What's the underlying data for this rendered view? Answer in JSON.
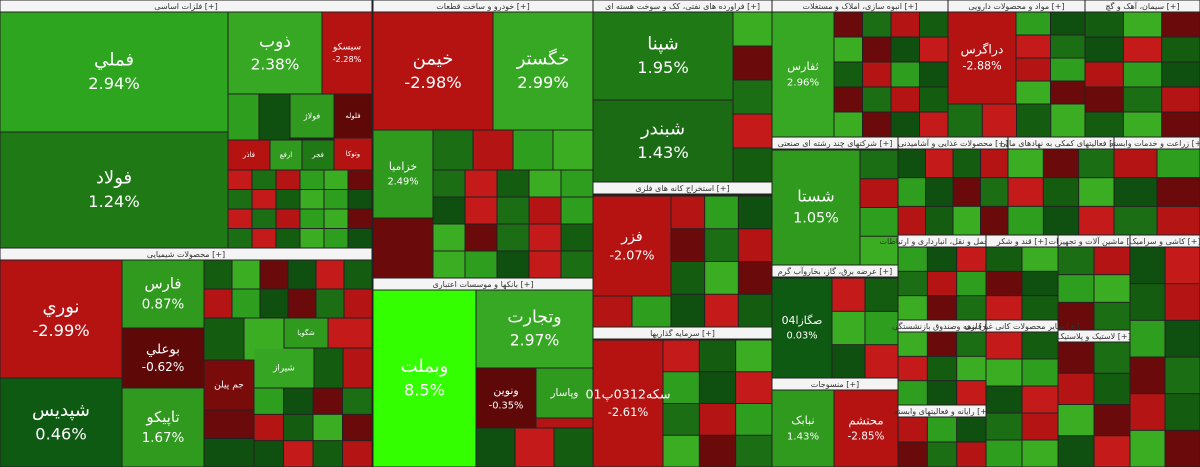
{
  "sectors": [
    {
      "title": "فلزات اساسی [+]",
      "tiles": [
        {
          "name": "فملي",
          "change": "2.94%",
          "color": "#2ea51f"
        },
        {
          "name": "فولاد",
          "change": "1.24%",
          "color": "#1f7a16"
        },
        {
          "name": "ذوب",
          "change": "2.38%",
          "color": "#37a823"
        },
        {
          "name": "سیسکو",
          "change": "-2.28%",
          "color": "#b51212"
        },
        {
          "name": "فولاژ",
          "color": "#2f9a1e"
        },
        {
          "name": "فلوله",
          "color": "#5e0808"
        },
        {
          "name": "فاذر",
          "color": "#b51212"
        },
        {
          "name": "ارفع",
          "color": "#2f9a1e"
        },
        {
          "name": "فجر",
          "color": "#1f7a16"
        },
        {
          "name": "وتوکا",
          "color": "#b51212"
        }
      ]
    },
    {
      "title": "محصولات شیمیایی [+]",
      "tiles": [
        {
          "name": "نوري",
          "change": "-2.99%",
          "color": "#b51212"
        },
        {
          "name": "شپديس",
          "change": "0.46%",
          "color": "#0f5a12"
        },
        {
          "name": "فارس",
          "change": "0.87%",
          "color": "#2f9a1e"
        },
        {
          "name": "بوعلي",
          "change": "-0.62%",
          "color": "#5e0808"
        },
        {
          "name": "تاپيکو",
          "change": "1.67%",
          "color": "#2f9a1e"
        },
        {
          "name": "جم پيلن",
          "color": "#7a0b0b"
        },
        {
          "name": "شگويا",
          "color": "#2f9a1e"
        },
        {
          "name": "شيراز",
          "color": "#36a524"
        }
      ]
    },
    {
      "title": "خودرو و ساخت قطعات [+]",
      "tiles": [
        {
          "name": "خيمن",
          "change": "-2.98%",
          "color": "#b51212"
        },
        {
          "name": "خگستر",
          "change": "2.99%",
          "color": "#37a823"
        },
        {
          "name": "خزاميا",
          "change": "2.49%",
          "color": "#2f9a1e"
        }
      ]
    },
    {
      "title": "بانکها و موسسات اعتباری [+]",
      "tiles": [
        {
          "name": "وبملت",
          "change": "8.5%",
          "color": "#33ff00"
        },
        {
          "name": "وتجارت",
          "change": "2.97%",
          "color": "#37a823"
        },
        {
          "name": "ونوين",
          "change": "-0.35%",
          "color": "#5e0808"
        },
        {
          "name": "وپاسار",
          "color": "#2f9a1e"
        }
      ]
    },
    {
      "title": "فراورده های نفتی، کک و سوخت هسته ای [+]",
      "tiles": [
        {
          "name": "شپنا",
          "change": "1.95%",
          "color": "#1f7a16"
        },
        {
          "name": "شبندر",
          "change": "1.43%",
          "color": "#1a6b14"
        }
      ]
    },
    {
      "title": "استخراج کانه های فلزی [+]",
      "tiles": [
        {
          "name": "فزر",
          "change": "-2.07%",
          "color": "#b51212"
        }
      ]
    },
    {
      "title": "سرمایه گذاریها [+]",
      "tiles": [
        {
          "name": "سکه0312پ01",
          "change": "-2.61%",
          "color": "#b51212"
        }
      ]
    },
    {
      "title": "انبوه سازی، املاک و مستغلات [+]",
      "tiles": [
        {
          "name": "ثفارس",
          "change": "2.96%",
          "color": "#37a823"
        }
      ]
    },
    {
      "title": "مواد و محصولات دارویی [+]",
      "tiles": [
        {
          "name": "دراگرس",
          "change": "-2.88%",
          "color": "#b51212"
        }
      ]
    },
    {
      "title": "سیمان، آهک و گچ [+]",
      "tiles": []
    },
    {
      "title": "شرکتهای چند رشته ای صنعتی [+]",
      "tiles": [
        {
          "name": "شستا",
          "change": "1.05%",
          "color": "#2f9a1e"
        }
      ]
    },
    {
      "title": "محصولات غذایی و آشامیدنی [+]",
      "tiles": []
    },
    {
      "title": "فعالیتهای کمکی به نهادهای مالی [+]",
      "tiles": []
    },
    {
      "title": "زراعت و خدمات وابسته [+]",
      "tiles": []
    },
    {
      "title": "عرضه برق، گاز، بخاروآب گرم [+]",
      "tiles": [
        {
          "name": "صگازا04",
          "change": "0.03%",
          "color": "#0f5a12"
        }
      ]
    },
    {
      "title": "منسوجات [+]",
      "tiles": [
        {
          "name": "نبابک",
          "change": "1.43%",
          "color": "#2f9a1e"
        },
        {
          "name": "محتشم",
          "change": "-2.85%",
          "color": "#b51212"
        }
      ]
    },
    {
      "title": "حمل و نقل، انبارداری و ارتباطات [+]",
      "tiles": []
    },
    {
      "title": "قند و شکر [+]",
      "tiles": []
    },
    {
      "title": "ماشین آلات و تجهیزات [+]",
      "tiles": []
    },
    {
      "title": "کاشی و سرامیک [+]",
      "tiles": []
    },
    {
      "title": "بیمه وصندوق بازنشستگی [+]",
      "tiles": []
    },
    {
      "title": "رایانه و فعالیتهای وابسته [+]",
      "tiles": []
    },
    {
      "title": "سایر محصولات کانی غیرفلزی [+]",
      "tiles": []
    },
    {
      "title": "لاستیک و پلاستیک [+]",
      "tiles": []
    }
  ]
}
